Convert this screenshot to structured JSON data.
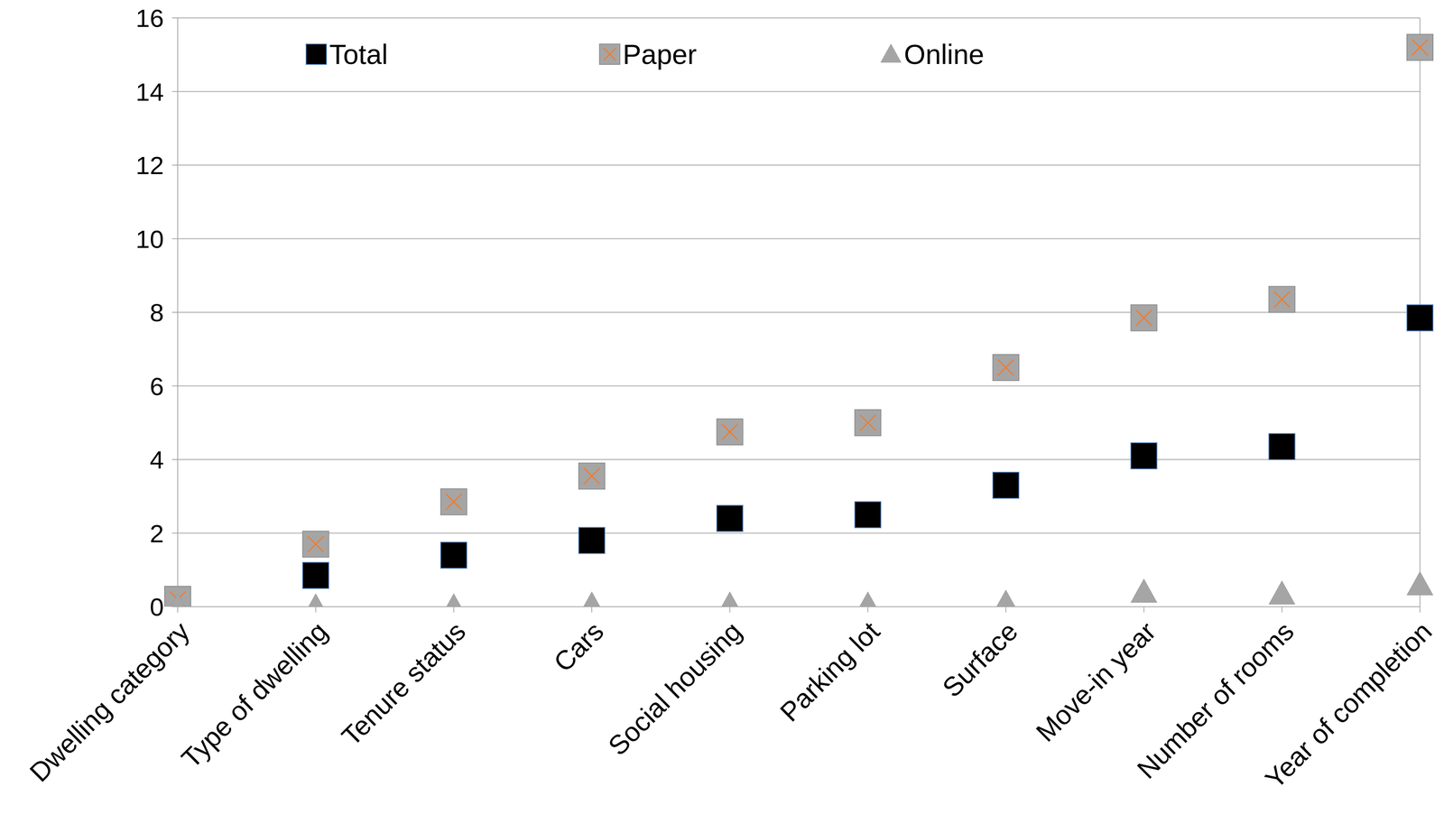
{
  "chart_data": {
    "type": "scatter",
    "categories": [
      "Dwelling category",
      "Type of dwelling",
      "Tenure status",
      "Cars",
      "Social housing",
      "Parking lot",
      "Surface",
      "Move-in year",
      "Number of rooms",
      "Year of completion"
    ],
    "series": [
      {
        "name": "Total",
        "color": "#000000",
        "marker": "square",
        "values": [
          0.1,
          0.85,
          1.4,
          1.8,
          2.4,
          2.5,
          3.3,
          4.1,
          4.35,
          7.85
        ]
      },
      {
        "name": "Paper",
        "color": "#a5a5a5",
        "marker": "square-x",
        "values": [
          0.2,
          1.7,
          2.85,
          3.55,
          4.75,
          5.0,
          6.5,
          7.85,
          8.35,
          15.2
        ]
      },
      {
        "name": "Online",
        "color": "#a5a5a5",
        "marker": "triangle",
        "values": [
          0.0,
          0.0,
          0.0,
          0.05,
          0.05,
          0.05,
          0.1,
          0.4,
          0.35,
          0.6
        ]
      }
    ],
    "ylim": [
      0,
      16
    ],
    "yticks": [
      0,
      2,
      4,
      6,
      8,
      10,
      12,
      14,
      16
    ],
    "grid": true,
    "legend": "top"
  }
}
